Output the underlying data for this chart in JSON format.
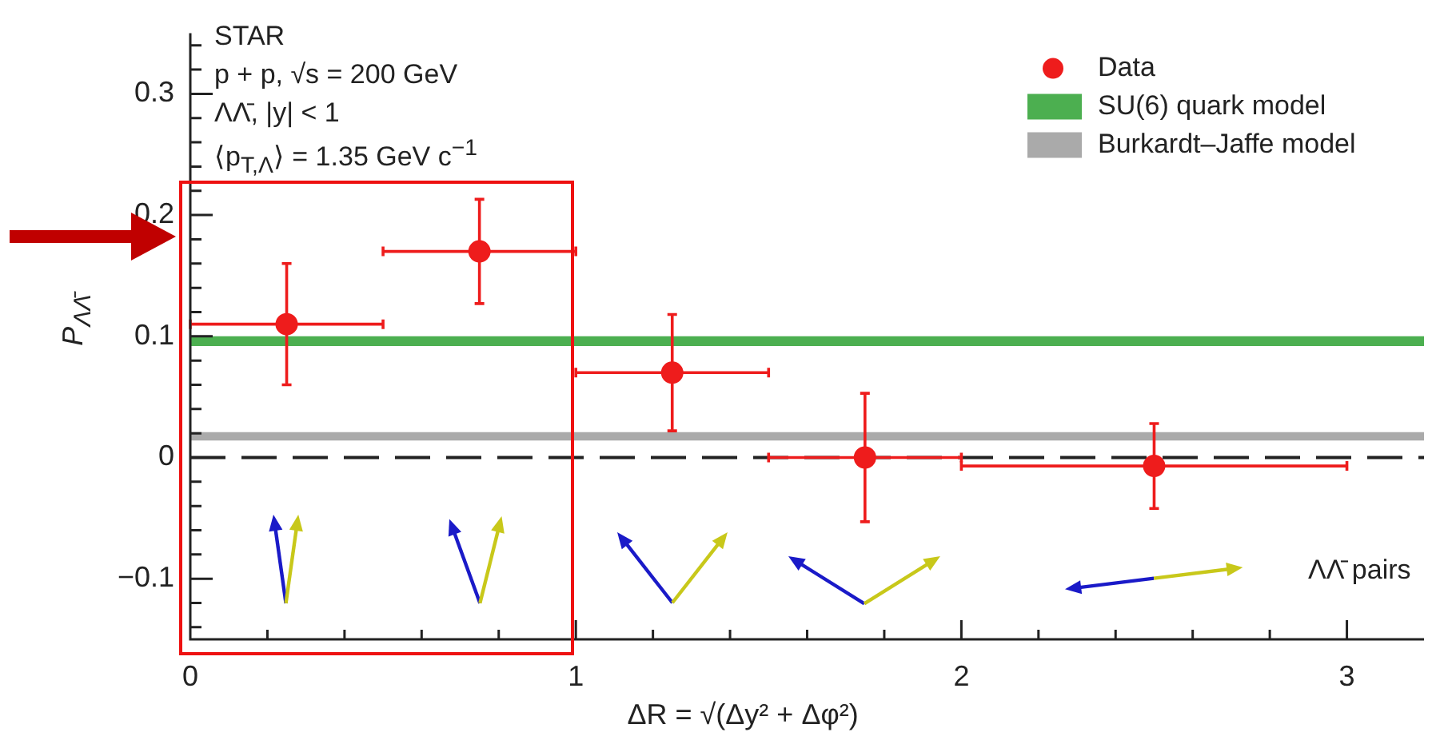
{
  "chart_data": {
    "type": "scatter",
    "xlabel": "ΔR = √(Δy² + Δφ²)",
    "ylabel": "P$_{ΛΛ̄}$",
    "annotations": [
      "STAR",
      "p + p, √s = 200 GeV",
      "ΛΛ̄, |y| < 1",
      "⟨p$_{T,Λ}$⟩ = 1.35 GeV c$^{−1}$",
      "ΛΛ̄ pairs"
    ],
    "x": [
      0.25,
      0.75,
      1.25,
      1.75,
      2.5
    ],
    "series": [
      {
        "name": "Data",
        "color": "#ee1c1c",
        "values": [
          0.11,
          0.17,
          0.07,
          0,
          -0.007
        ],
        "errors": [
          0.05,
          0.043,
          0.048,
          0.053,
          0.035
        ],
        "xerrors": [
          0.25,
          0.25,
          0.25,
          0.25,
          0.5
        ]
      }
    ],
    "bands": [
      {
        "axis": "y",
        "from": 0.092,
        "to": 0.1,
        "label": "SU(6) quark model",
        "color": "#4caf50"
      },
      {
        "axis": "y",
        "from": 0.014,
        "to": 0.021,
        "label": "Burkardt–Jaffe model",
        "color": "#aaaaaa"
      }
    ],
    "ref_lines": [
      {
        "axis": "y",
        "value": 0,
        "color": "#222222",
        "line_style": "dashed"
      }
    ],
    "xlim": [
      0,
      3.2
    ],
    "ylim": [
      -0.15,
      0.35
    ],
    "xticks": [
      0,
      {
        "value": 0.2,
        "label": null
      },
      {
        "value": 0.4,
        "label": null
      },
      {
        "value": 0.6,
        "label": null
      },
      {
        "value": 0.8,
        "label": null
      },
      1,
      {
        "value": 1.2,
        "label": null
      },
      {
        "value": 1.4,
        "label": null
      },
      {
        "value": 1.6,
        "label": null
      },
      {
        "value": 1.8,
        "label": null
      },
      2,
      {
        "value": 2.2,
        "label": null
      },
      {
        "value": 2.4,
        "label": null
      },
      {
        "value": 2.6,
        "label": null
      },
      {
        "value": 2.8,
        "label": null
      },
      3
    ],
    "yticks": [
      {
        "value": -0.14,
        "label": null
      },
      {
        "value": -0.12,
        "label": null
      },
      -0.1,
      {
        "value": -0.08,
        "label": null
      },
      {
        "value": -0.06,
        "label": null
      },
      {
        "value": -0.04,
        "label": null
      },
      {
        "value": -0.02,
        "label": null
      },
      0,
      {
        "value": 0.02,
        "label": null
      },
      {
        "value": 0.04,
        "label": null
      },
      {
        "value": 0.06,
        "label": null
      },
      {
        "value": 0.08,
        "label": null
      },
      0.1,
      {
        "value": 0.12,
        "label": null
      },
      {
        "value": 0.14,
        "label": null
      },
      {
        "value": 0.16,
        "label": null
      },
      {
        "value": 0.18,
        "label": null
      },
      0.2,
      {
        "value": 0.22,
        "label": null
      },
      {
        "value": 0.24,
        "label": null
      },
      {
        "value": 0.26,
        "label": null
      },
      {
        "value": 0.28,
        "label": null
      },
      0.3,
      {
        "value": 0.32,
        "label": null
      },
      {
        "value": 0.34,
        "label": null
      }
    ],
    "grid": false,
    "legend": "top right",
    "marker": "circle"
  }
}
